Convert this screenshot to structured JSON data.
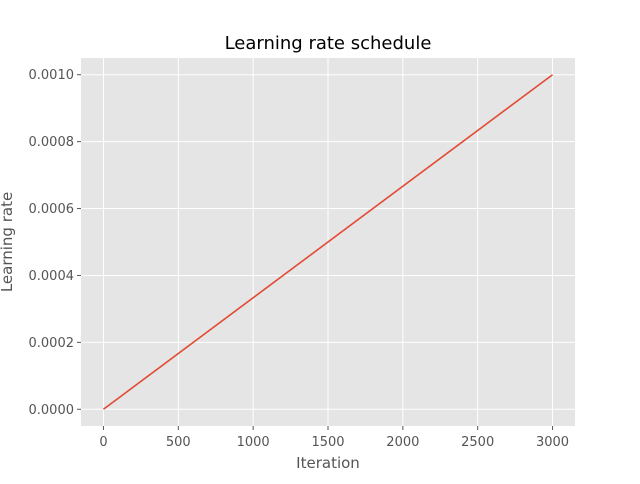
{
  "chart_data": {
    "type": "line",
    "title": "Learning rate schedule",
    "xlabel": "Iteration",
    "ylabel": "Learning rate",
    "xlim": [
      -150,
      3150
    ],
    "ylim": [
      -5e-05,
      0.00105
    ],
    "xticks": [
      0,
      500,
      1000,
      1500,
      2000,
      2500,
      3000
    ],
    "xtick_labels": [
      "0",
      "500",
      "1000",
      "1500",
      "2000",
      "2500",
      "3000"
    ],
    "yticks": [
      0.0,
      0.0002,
      0.0004,
      0.0006,
      0.0008,
      0.001
    ],
    "ytick_labels": [
      "0.0000",
      "0.0002",
      "0.0004",
      "0.0006",
      "0.0008",
      "0.0010"
    ],
    "grid": true,
    "series": [
      {
        "color": "#E24A33",
        "x": [
          0,
          3000
        ],
        "y": [
          0.0,
          0.001
        ]
      }
    ],
    "colors": {
      "plot_background": "#E5E5E5",
      "grid": "#FFFFFF"
    }
  }
}
